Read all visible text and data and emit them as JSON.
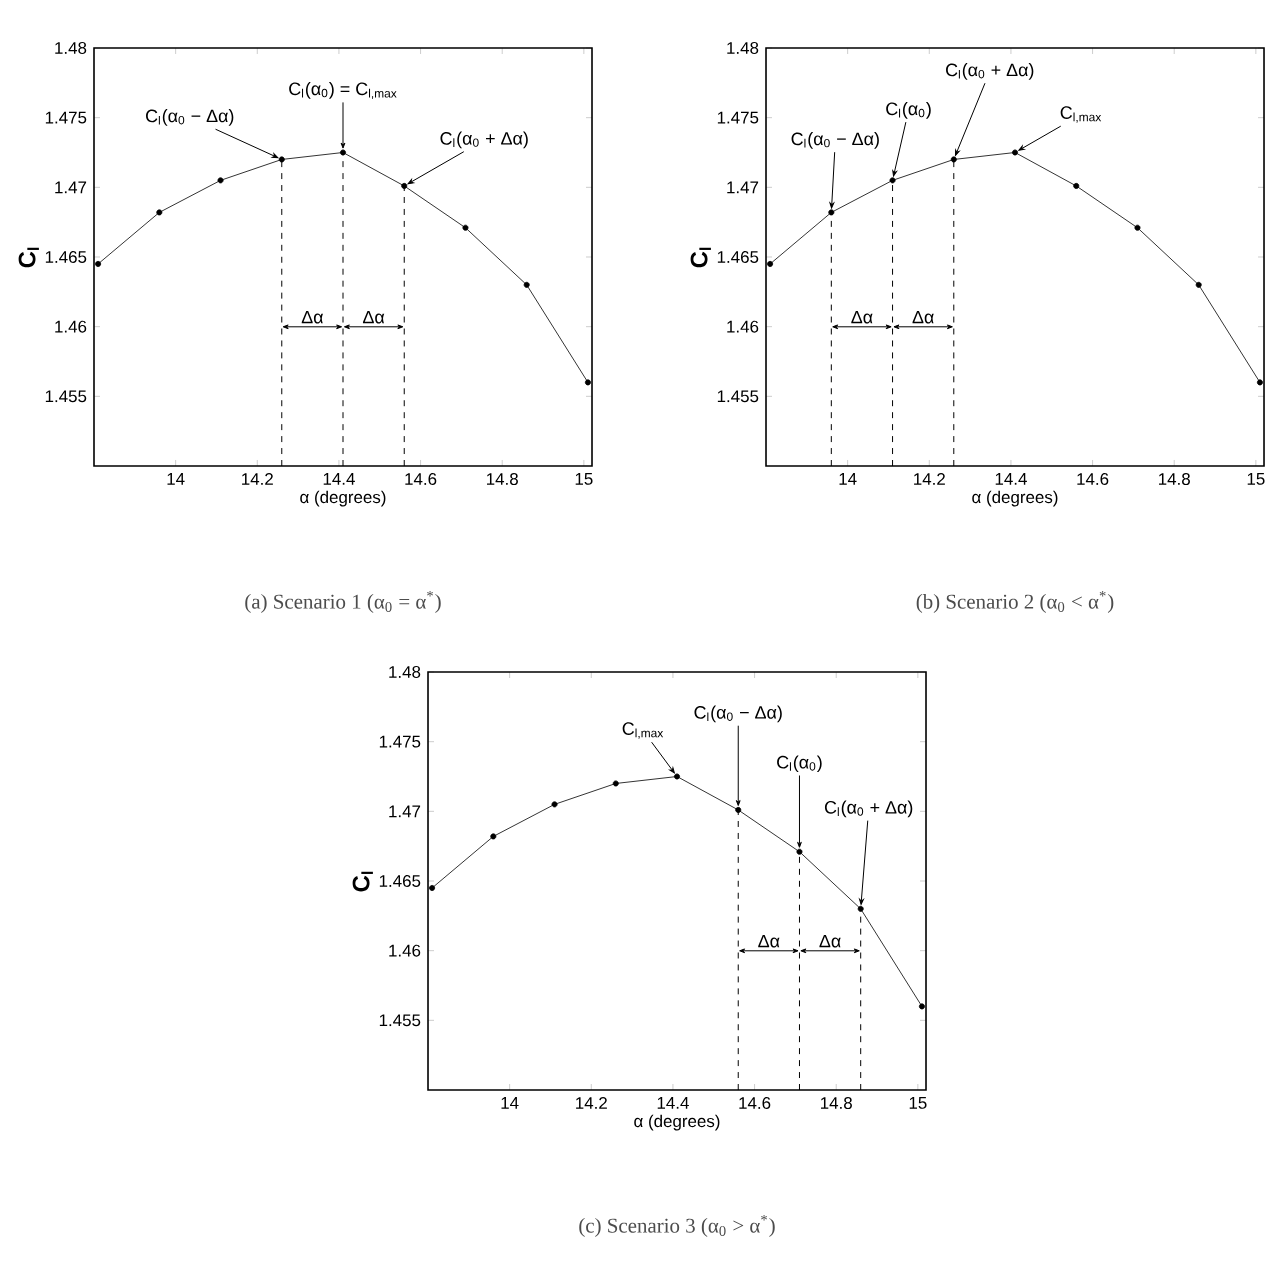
{
  "chart_data": [
    {
      "type": "line",
      "xlabel": "α (degrees)",
      "ylabel": "C$_{l}$",
      "color": "#000000",
      "marker": "circle",
      "line_style": "solid",
      "x": [
        13.81,
        13.96,
        14.11,
        14.26,
        14.41,
        14.56,
        14.71,
        14.86,
        15.01
      ],
      "values": [
        1.4645,
        1.4682,
        1.4705,
        1.472,
        1.4725,
        1.4701,
        1.4671,
        1.463,
        1.456
      ],
      "xlim": [
        13.8,
        15.02
      ],
      "ylim": [
        1.45,
        1.48
      ],
      "xticks": [
        14,
        14.2,
        14.4,
        14.6,
        14.8,
        15
      ],
      "yticks": [
        1.455,
        1.46,
        1.465,
        1.47,
        1.475,
        1.48
      ],
      "ref_lines": [
        {
          "axis": "x",
          "value": 14.26,
          "line_style": "dashed"
        },
        {
          "axis": "x",
          "value": 14.41,
          "line_style": "dashed"
        },
        {
          "axis": "x",
          "value": 14.56,
          "line_style": "dashed"
        }
      ],
      "annotations": [
        {
          "text": "C$_{l}$(α$_{0}$ − Δα)",
          "x": 14.26,
          "y": 1.472
        },
        {
          "text": "C$_{l}$(α$_{0}$) = C$_{l,max}$",
          "x": 14.41,
          "y": 1.4725
        },
        {
          "text": "C$_{l}$(α$_{0}$ + Δα)",
          "x": 14.56,
          "y": 1.4701
        },
        "Δα",
        "Δα",
        "(a) Scenario 1 (α$_{0}$ = α$^{*}$)"
      ]
    },
    {
      "type": "line",
      "xlabel": "α (degrees)",
      "ylabel": "C$_{l}$",
      "color": "#000000",
      "marker": "circle",
      "line_style": "solid",
      "x": [
        13.81,
        13.96,
        14.11,
        14.26,
        14.41,
        14.56,
        14.71,
        14.86,
        15.01
      ],
      "values": [
        1.4645,
        1.4682,
        1.4705,
        1.472,
        1.4725,
        1.4701,
        1.4671,
        1.463,
        1.456
      ],
      "xlim": [
        13.8,
        15.02
      ],
      "ylim": [
        1.45,
        1.48
      ],
      "xticks": [
        14,
        14.2,
        14.4,
        14.6,
        14.8,
        15
      ],
      "yticks": [
        1.455,
        1.46,
        1.465,
        1.47,
        1.475,
        1.48
      ],
      "ref_lines": [
        {
          "axis": "x",
          "value": 13.96,
          "line_style": "dashed"
        },
        {
          "axis": "x",
          "value": 14.11,
          "line_style": "dashed"
        },
        {
          "axis": "x",
          "value": 14.26,
          "line_style": "dashed"
        }
      ],
      "annotations": [
        {
          "text": "C$_{l}$(α$_{0}$ − Δα)",
          "x": 13.96,
          "y": 1.4682
        },
        {
          "text": "C$_{l}$(α$_{0}$)",
          "x": 14.11,
          "y": 1.4705
        },
        {
          "text": "C$_{l}$(α$_{0}$ + Δα)",
          "x": 14.26,
          "y": 1.472
        },
        {
          "text": "C$_{l,max}$",
          "x": 14.41,
          "y": 1.4725
        },
        "Δα",
        "Δα",
        "(b) Scenario 2 (α$_{0}$ < α$^{*}$)"
      ]
    },
    {
      "type": "line",
      "xlabel": "α (degrees)",
      "ylabel": "C$_{l}$",
      "color": "#000000",
      "marker": "circle",
      "line_style": "solid",
      "x": [
        13.81,
        13.96,
        14.11,
        14.26,
        14.41,
        14.56,
        14.71,
        14.86,
        15.01
      ],
      "values": [
        1.4645,
        1.4682,
        1.4705,
        1.472,
        1.4725,
        1.4701,
        1.4671,
        1.463,
        1.456
      ],
      "xlim": [
        13.8,
        15.02
      ],
      "ylim": [
        1.45,
        1.48
      ],
      "xticks": [
        14,
        14.2,
        14.4,
        14.6,
        14.8,
        15
      ],
      "yticks": [
        1.455,
        1.46,
        1.465,
        1.47,
        1.475,
        1.48
      ],
      "ref_lines": [
        {
          "axis": "x",
          "value": 14.56,
          "line_style": "dashed"
        },
        {
          "axis": "x",
          "value": 14.71,
          "line_style": "dashed"
        },
        {
          "axis": "x",
          "value": 14.86,
          "line_style": "dashed"
        }
      ],
      "annotations": [
        {
          "text": "C$_{l,max}$",
          "x": 14.41,
          "y": 1.4725
        },
        {
          "text": "C$_{l}$(α$_{0}$ − Δα)",
          "x": 14.56,
          "y": 1.4701
        },
        {
          "text": "C$_{l}$(α$_{0}$)",
          "x": 14.71,
          "y": 1.4671
        },
        {
          "text": "C$_{l}$(α$_{0}$ + Δα)",
          "x": 14.86,
          "y": 1.463
        },
        "Δα",
        "Δα",
        "(c) Scenario 3 (α$_{0}$ > α$^{*}$)"
      ]
    }
  ]
}
